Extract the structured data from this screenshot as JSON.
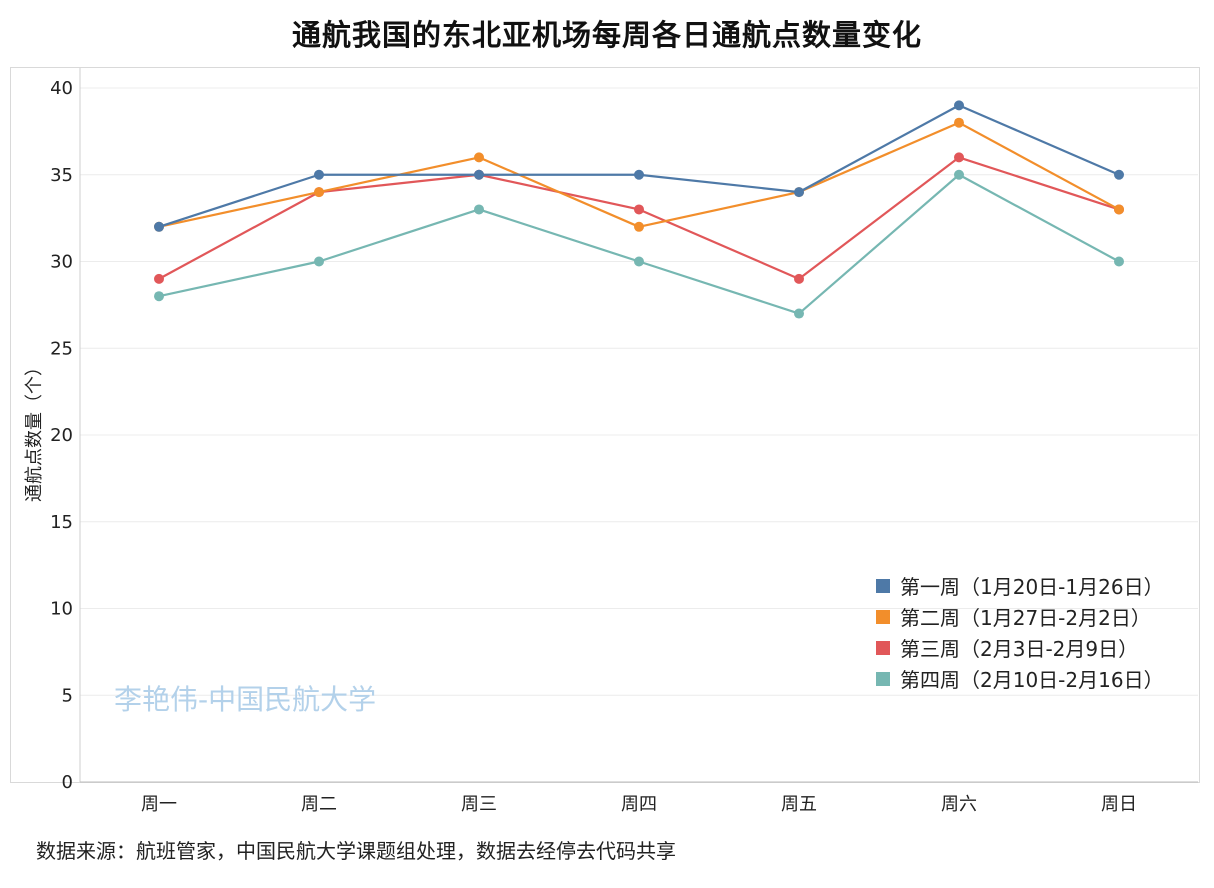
{
  "title": "通航我国的东北亚机场每周各日通航点数量变化",
  "watermark": "李艳伟-中国民航大学",
  "source": "数据来源：航班管家，中国民航大学课题组处理，数据去经停去代码共享",
  "chart_data": {
    "type": "line",
    "title": "通航我国的东北亚机场每周各日通航点数量变化",
    "xlabel": "",
    "ylabel": "通航点数量（个）",
    "categories": [
      "周一",
      "周二",
      "周三",
      "周四",
      "周五",
      "周六",
      "周日"
    ],
    "ylim": [
      0,
      40
    ],
    "yticks": [
      0,
      5,
      10,
      15,
      20,
      25,
      30,
      35,
      40
    ],
    "grid": true,
    "legend_position": "bottom-right",
    "series": [
      {
        "name": "第一周（1月20日-1月26日）",
        "color": "#4e79a7",
        "values": [
          32,
          35,
          35,
          35,
          34,
          39,
          35
        ]
      },
      {
        "name": "第二周（1月27日-2月2日）",
        "color": "#f28e2b",
        "values": [
          32,
          34,
          36,
          32,
          34,
          38,
          33
        ]
      },
      {
        "name": "第三周（2月3日-2月9日）",
        "color": "#e15759",
        "values": [
          29,
          34,
          35,
          33,
          29,
          36,
          33
        ]
      },
      {
        "name": "第四周（2月10日-2月16日）",
        "color": "#76b7b2",
        "values": [
          28,
          30,
          33,
          30,
          27,
          35,
          30
        ]
      }
    ]
  }
}
